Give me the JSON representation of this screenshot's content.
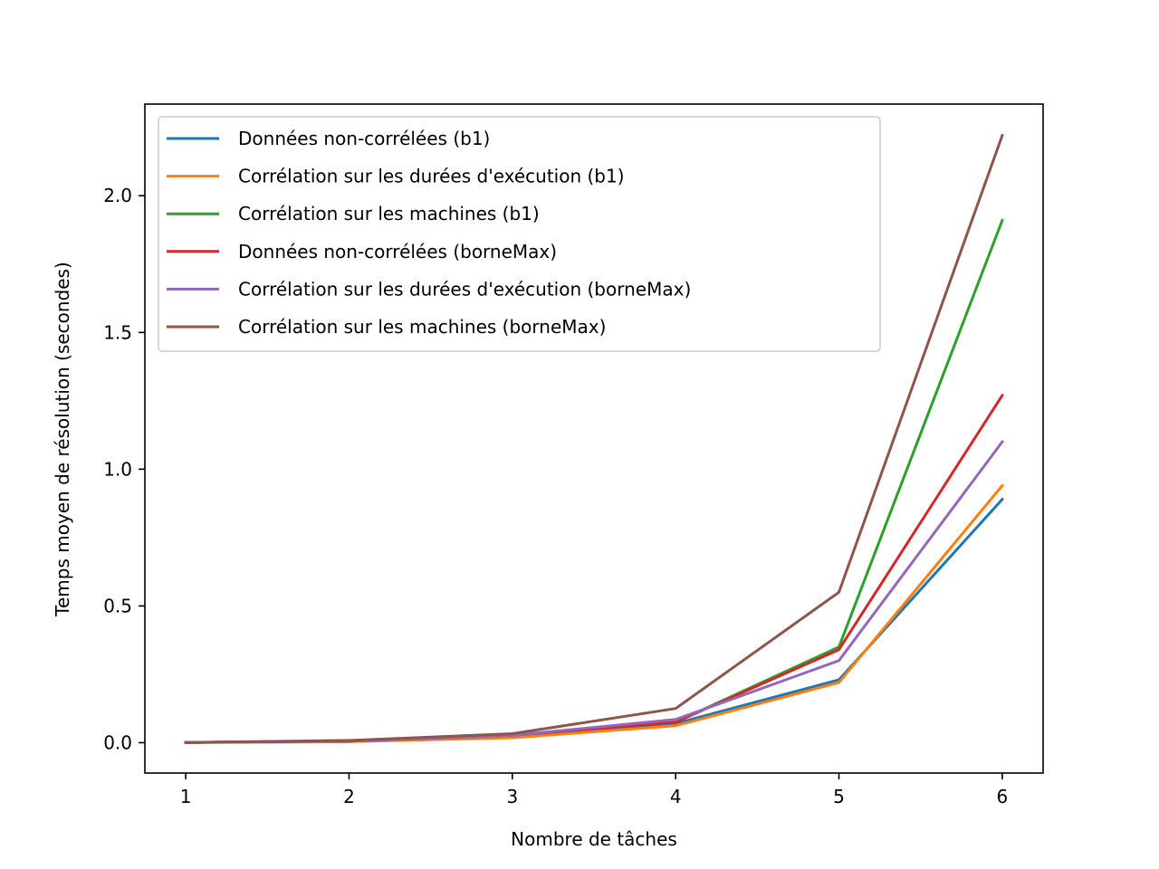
{
  "chart_data": {
    "type": "line",
    "title": "",
    "xlabel": "Nombre de tâches",
    "ylabel": "Temps moyen de résolution (secondes)",
    "x": [
      1,
      2,
      3,
      4,
      5,
      6
    ],
    "xticks": [
      "1",
      "2",
      "3",
      "4",
      "5",
      "6"
    ],
    "yticks": [
      "0.0",
      "0.5",
      "1.0",
      "1.5",
      "2.0"
    ],
    "ytick_values": [
      0,
      0.5,
      1.0,
      1.5,
      2.0
    ],
    "xlim": [
      0.75,
      6.25
    ],
    "ylim": [
      -0.111,
      2.335
    ],
    "grid": false,
    "legend_position": "upper-left",
    "series": [
      {
        "name": "Données non-corrélées (b1)",
        "color": "#1f77b4",
        "values": [
          0.001,
          0.004,
          0.02,
          0.07,
          0.23,
          0.89
        ]
      },
      {
        "name": "Corrélation sur les durées d'exécution (b1)",
        "color": "#ff7f0e",
        "values": [
          0.001,
          0.004,
          0.018,
          0.062,
          0.22,
          0.94
        ]
      },
      {
        "name": "Corrélation sur les machines (b1)",
        "color": "#2ca02c",
        "values": [
          0.001,
          0.006,
          0.028,
          0.075,
          0.35,
          1.91
        ]
      },
      {
        "name": "Données non-corrélées (borneMax)",
        "color": "#d62728",
        "values": [
          0.001,
          0.006,
          0.027,
          0.075,
          0.34,
          1.27
        ]
      },
      {
        "name": "Corrélation sur les durées d'exécution (borneMax)",
        "color": "#9467bd",
        "values": [
          0.001,
          0.006,
          0.027,
          0.085,
          0.3,
          1.1
        ]
      },
      {
        "name": "Corrélation sur les machines (borneMax)",
        "color": "#8c564b",
        "values": [
          0.001,
          0.008,
          0.033,
          0.125,
          0.55,
          2.22
        ]
      }
    ]
  }
}
